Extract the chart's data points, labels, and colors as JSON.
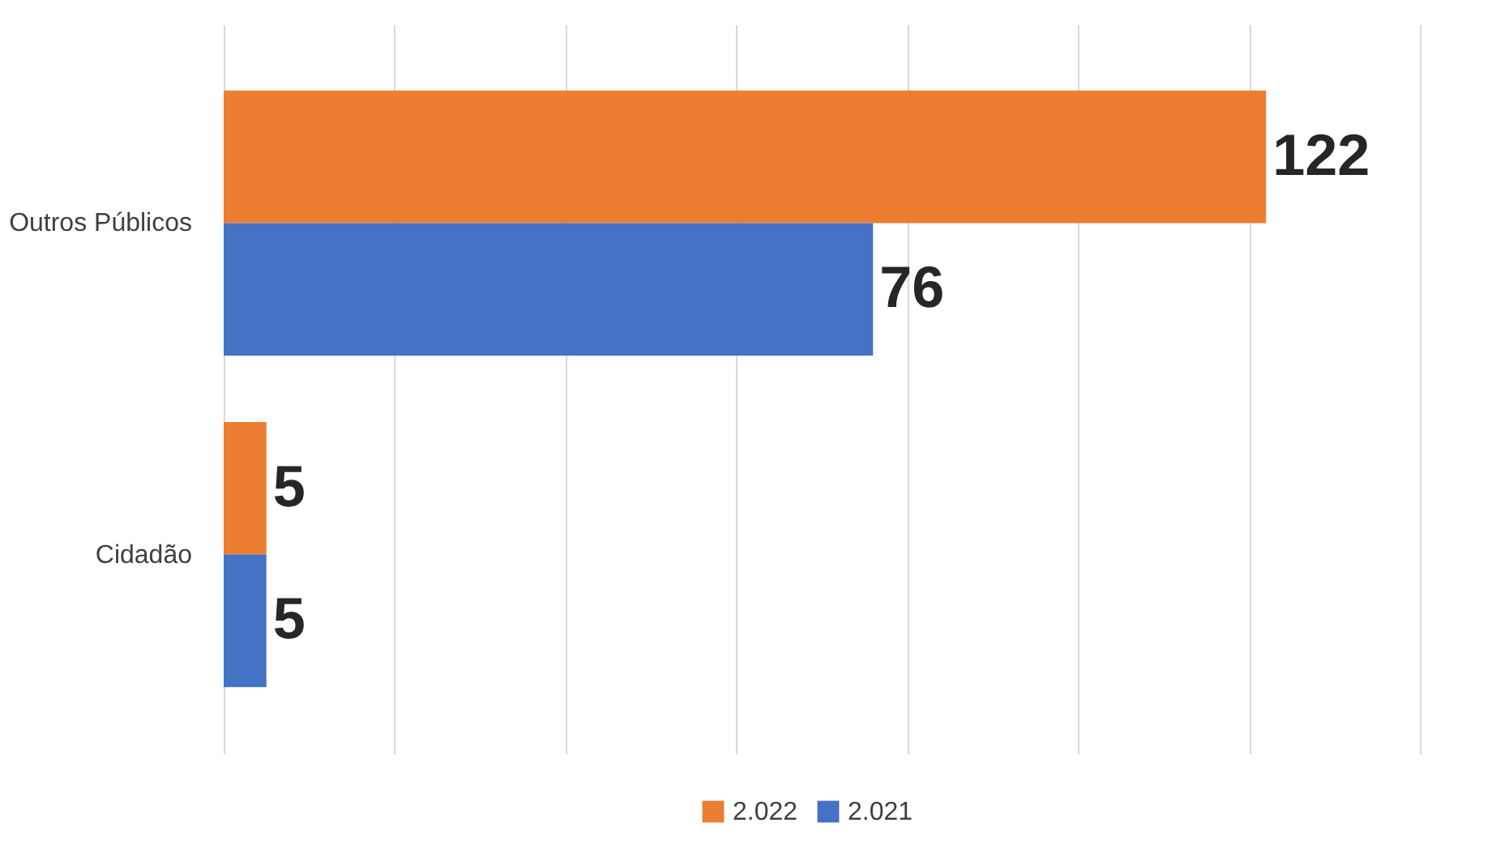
{
  "chart_data": {
    "type": "bar",
    "orientation": "horizontal",
    "categories": [
      "Outros Públicos",
      "Cidadão"
    ],
    "series": [
      {
        "name": "2.022",
        "color": "#ed7d31",
        "values": [
          122,
          5
        ]
      },
      {
        "name": "2.021",
        "color": "#4472c4",
        "values": [
          76,
          5
        ]
      }
    ],
    "xlim": [
      0,
      140
    ],
    "xticks": [
      {
        "value": 0,
        "label": null
      },
      {
        "value": 20,
        "label": null
      },
      {
        "value": 40,
        "label": null
      },
      {
        "value": 60,
        "label": null
      },
      {
        "value": 80,
        "label": null
      },
      {
        "value": 100,
        "label": null
      },
      {
        "value": 120,
        "label": null
      },
      {
        "value": 140,
        "label": null
      }
    ],
    "tick_labels": "y",
    "grid": "x",
    "legend": "bottom",
    "data_labels": true
  }
}
